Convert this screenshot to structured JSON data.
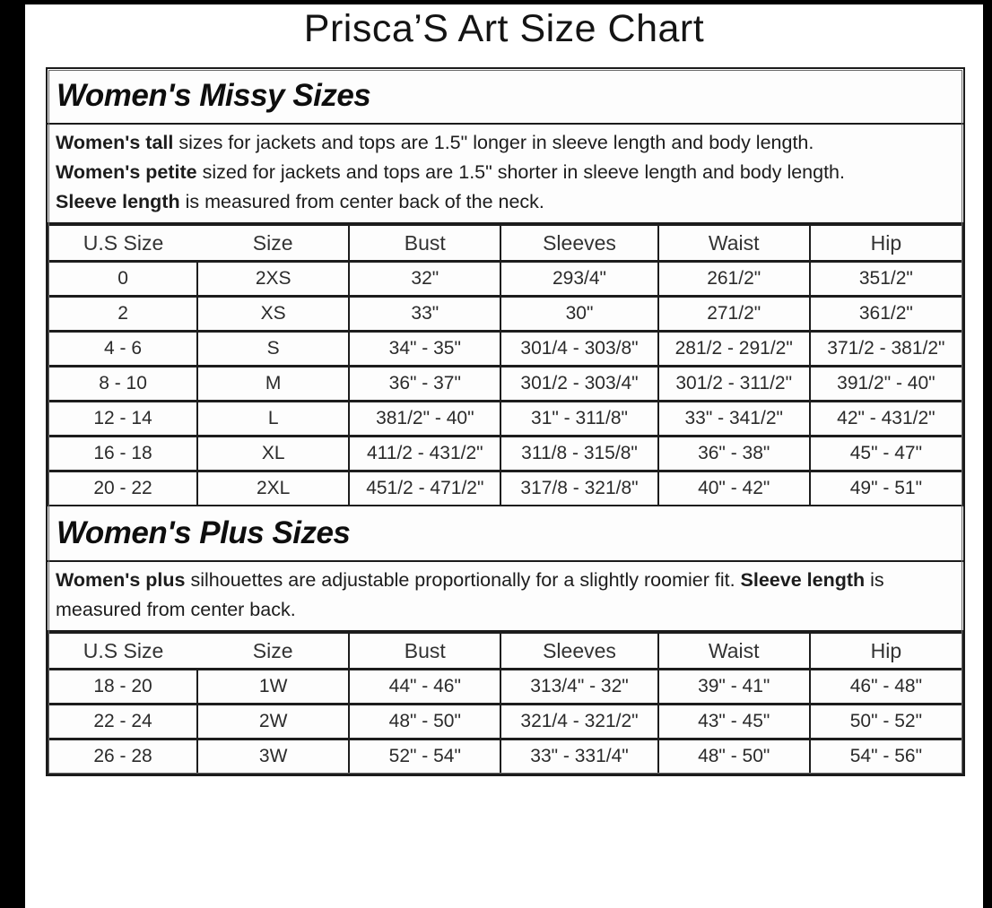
{
  "title": "Prisca’S Art Size Chart",
  "sections": {
    "missy": {
      "heading": "Women's Missy Sizes",
      "notes": [
        {
          "lead": "Women's tall",
          "rest": " sizes for jackets and tops are 1.5\" longer in sleeve length and body length."
        },
        {
          "lead": "Women's petite",
          "rest": " sized for jackets and tops are 1.5\" shorter in sleeve length and body length."
        },
        {
          "lead": "Sleeve length",
          "rest": " is measured from center back of the neck."
        }
      ],
      "table": {
        "columns": [
          "U.S Size",
          "Size",
          "Bust",
          "Sleeves",
          "Waist",
          "Hip"
        ],
        "rows": [
          [
            "0",
            "2XS",
            "32\"",
            "293/4\"",
            "261/2\"",
            "351/2\""
          ],
          [
            "2",
            "XS",
            "33\"",
            "30\"",
            "271/2\"",
            "361/2\""
          ],
          [
            "4 - 6",
            "S",
            "34\" - 35\"",
            "301/4 - 303/8\"",
            "281/2 - 291/2\"",
            "371/2 - 381/2\""
          ],
          [
            "8 - 10",
            "M",
            "36\" - 37\"",
            "301/2 - 303/4\"",
            "301/2 - 311/2\"",
            "391/2\" - 40\""
          ],
          [
            "12 - 14",
            "L",
            "381/2\" - 40\"",
            "31\" - 311/8\"",
            "33\" - 341/2\"",
            "42\" - 431/2\""
          ],
          [
            "16 - 18",
            "XL",
            "411/2 - 431/2\"",
            "311/8 - 315/8\"",
            "36\" - 38\"",
            "45\" - 47\""
          ],
          [
            "20 - 22",
            "2XL",
            "451/2 - 471/2\"",
            "317/8 - 321/8\"",
            "40\" - 42\"",
            "49\" - 51\""
          ]
        ]
      }
    },
    "plus": {
      "heading": "Women's Plus Sizes",
      "note_segments": [
        {
          "text": "Women's plus",
          "bold": true
        },
        {
          "text": " silhouettes are adjustable proportionally for a slightly roomier fit. ",
          "bold": false
        },
        {
          "text": "Sleeve length",
          "bold": true
        },
        {
          "text": " is measured from center back.",
          "bold": false
        }
      ],
      "table": {
        "columns": [
          "U.S Size",
          "Size",
          "Bust",
          "Sleeves",
          "Waist",
          "Hip"
        ],
        "rows": [
          [
            "18 - 20",
            "1W",
            "44\" - 46\"",
            "313/4\" - 32\"",
            "39\" - 41\"",
            "46\" - 48\""
          ],
          [
            "22 - 24",
            "2W",
            "48\" - 50\"",
            "321/4 - 321/2\"",
            "43\" - 45\"",
            "50\" - 52\""
          ],
          [
            "26 - 28",
            "3W",
            "52\" - 54\"",
            "33\" - 331/4\"",
            "48\" - 50\"",
            "54\" - 56\""
          ]
        ]
      }
    }
  }
}
